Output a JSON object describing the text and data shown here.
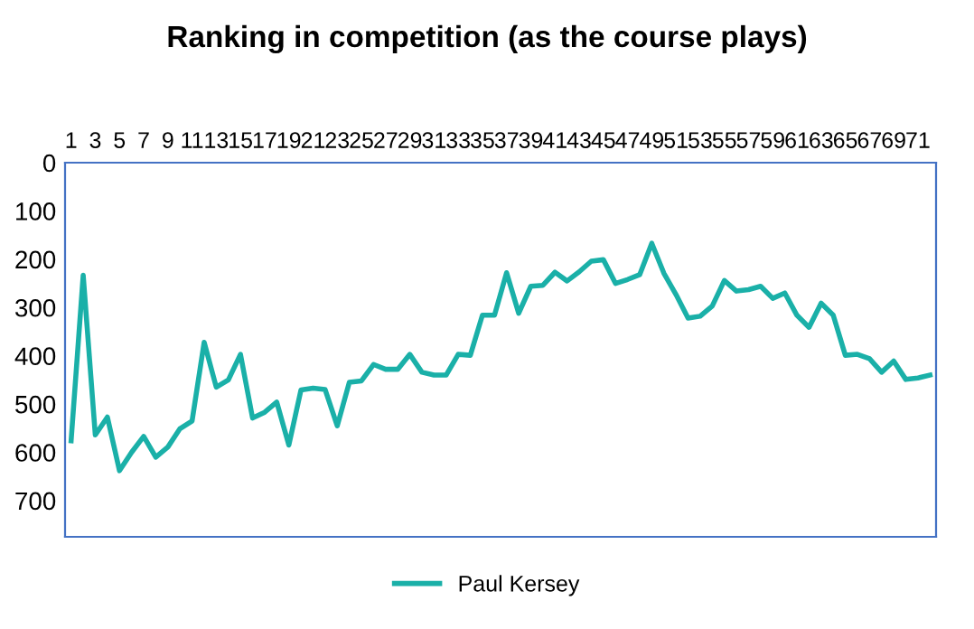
{
  "chart_data": {
    "type": "line",
    "title": "Ranking in competition (as the course plays)",
    "categories": [
      "1",
      null,
      "3",
      null,
      "5",
      null,
      "7",
      null,
      "9",
      null,
      "11",
      null,
      "13",
      null,
      "15",
      null,
      "17",
      null,
      "19",
      null,
      "21",
      null,
      "23",
      null,
      "25",
      null,
      "27",
      null,
      "29",
      null,
      "31",
      null,
      "33",
      null,
      "35",
      null,
      "37",
      null,
      "39",
      null,
      "41",
      null,
      "43",
      null,
      "45",
      null,
      "47",
      null,
      "49",
      null,
      "51",
      null,
      "53",
      null,
      "55",
      null,
      "57",
      null,
      "59",
      null,
      "61",
      null,
      "63",
      null,
      "65",
      null,
      "67",
      null,
      "69",
      null,
      "71",
      null
    ],
    "series": [
      {
        "name": "Paul Kersey",
        "color": "#1ab0a8",
        "values": [
          576,
          233,
          564,
          527,
          638,
          600,
          567,
          610,
          589,
          551,
          535,
          372,
          465,
          450,
          397,
          529,
          517,
          496,
          585,
          471,
          467,
          470,
          545,
          455,
          452,
          418,
          428,
          428,
          397,
          434,
          440,
          440,
          397,
          399,
          316,
          316,
          228,
          312,
          256,
          254,
          227,
          245,
          226,
          204,
          201,
          250,
          242,
          232,
          167,
          229,
          273,
          322,
          318,
          297,
          244,
          266,
          263,
          256,
          281,
          270,
          316,
          341,
          291,
          316,
          399,
          397,
          406,
          434,
          411,
          449,
          446,
          440
        ]
      }
    ],
    "ylim": [
      775,
      0
    ],
    "yticks": [
      0,
      100,
      200,
      300,
      400,
      500,
      600,
      700
    ],
    "grid": false,
    "legend": "bottom",
    "marker": "none",
    "line_style": "solid"
  }
}
